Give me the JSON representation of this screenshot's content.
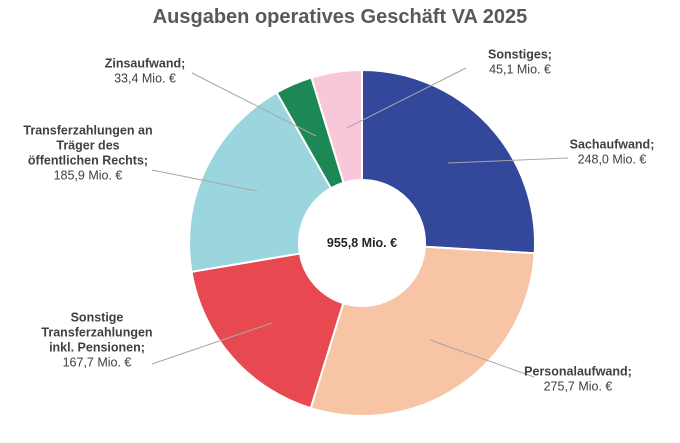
{
  "chart_data": {
    "type": "pie",
    "title": "Ausgaben operatives Geschäft VA 2025",
    "total_label": "955,8 Mio. €",
    "unit": "Mio. €",
    "slices": [
      {
        "name_lines": [
          "Sachaufwand;"
        ],
        "value_label": "248,0 Mio. €",
        "value": 248.0,
        "color": "#33489B"
      },
      {
        "name_lines": [
          "Personalaufwand;"
        ],
        "value_label": "275,7 Mio. €",
        "value": 275.7,
        "color": "#F7C5A5"
      },
      {
        "name_lines": [
          "Sonstige",
          "Transferzahlungen",
          "inkl. Pensionen;"
        ],
        "value_label": "167,7 Mio. €",
        "value": 167.7,
        "color": "#E8484F"
      },
      {
        "name_lines": [
          "Transferzahlungen an",
          "Träger des",
          "öffentlichen Rechts;"
        ],
        "value_label": "185,9 Mio. €",
        "value": 185.9,
        "color": "#9BD5DE"
      },
      {
        "name_lines": [
          "Zinsaufwand;"
        ],
        "value_label": "33,4 Mio. €",
        "value": 33.4,
        "color": "#1E8756"
      },
      {
        "name_lines": [
          "Sonstiges;"
        ],
        "value_label": "45,1 Mio. €",
        "value": 45.1,
        "color": "#F8C8DA"
      }
    ]
  }
}
